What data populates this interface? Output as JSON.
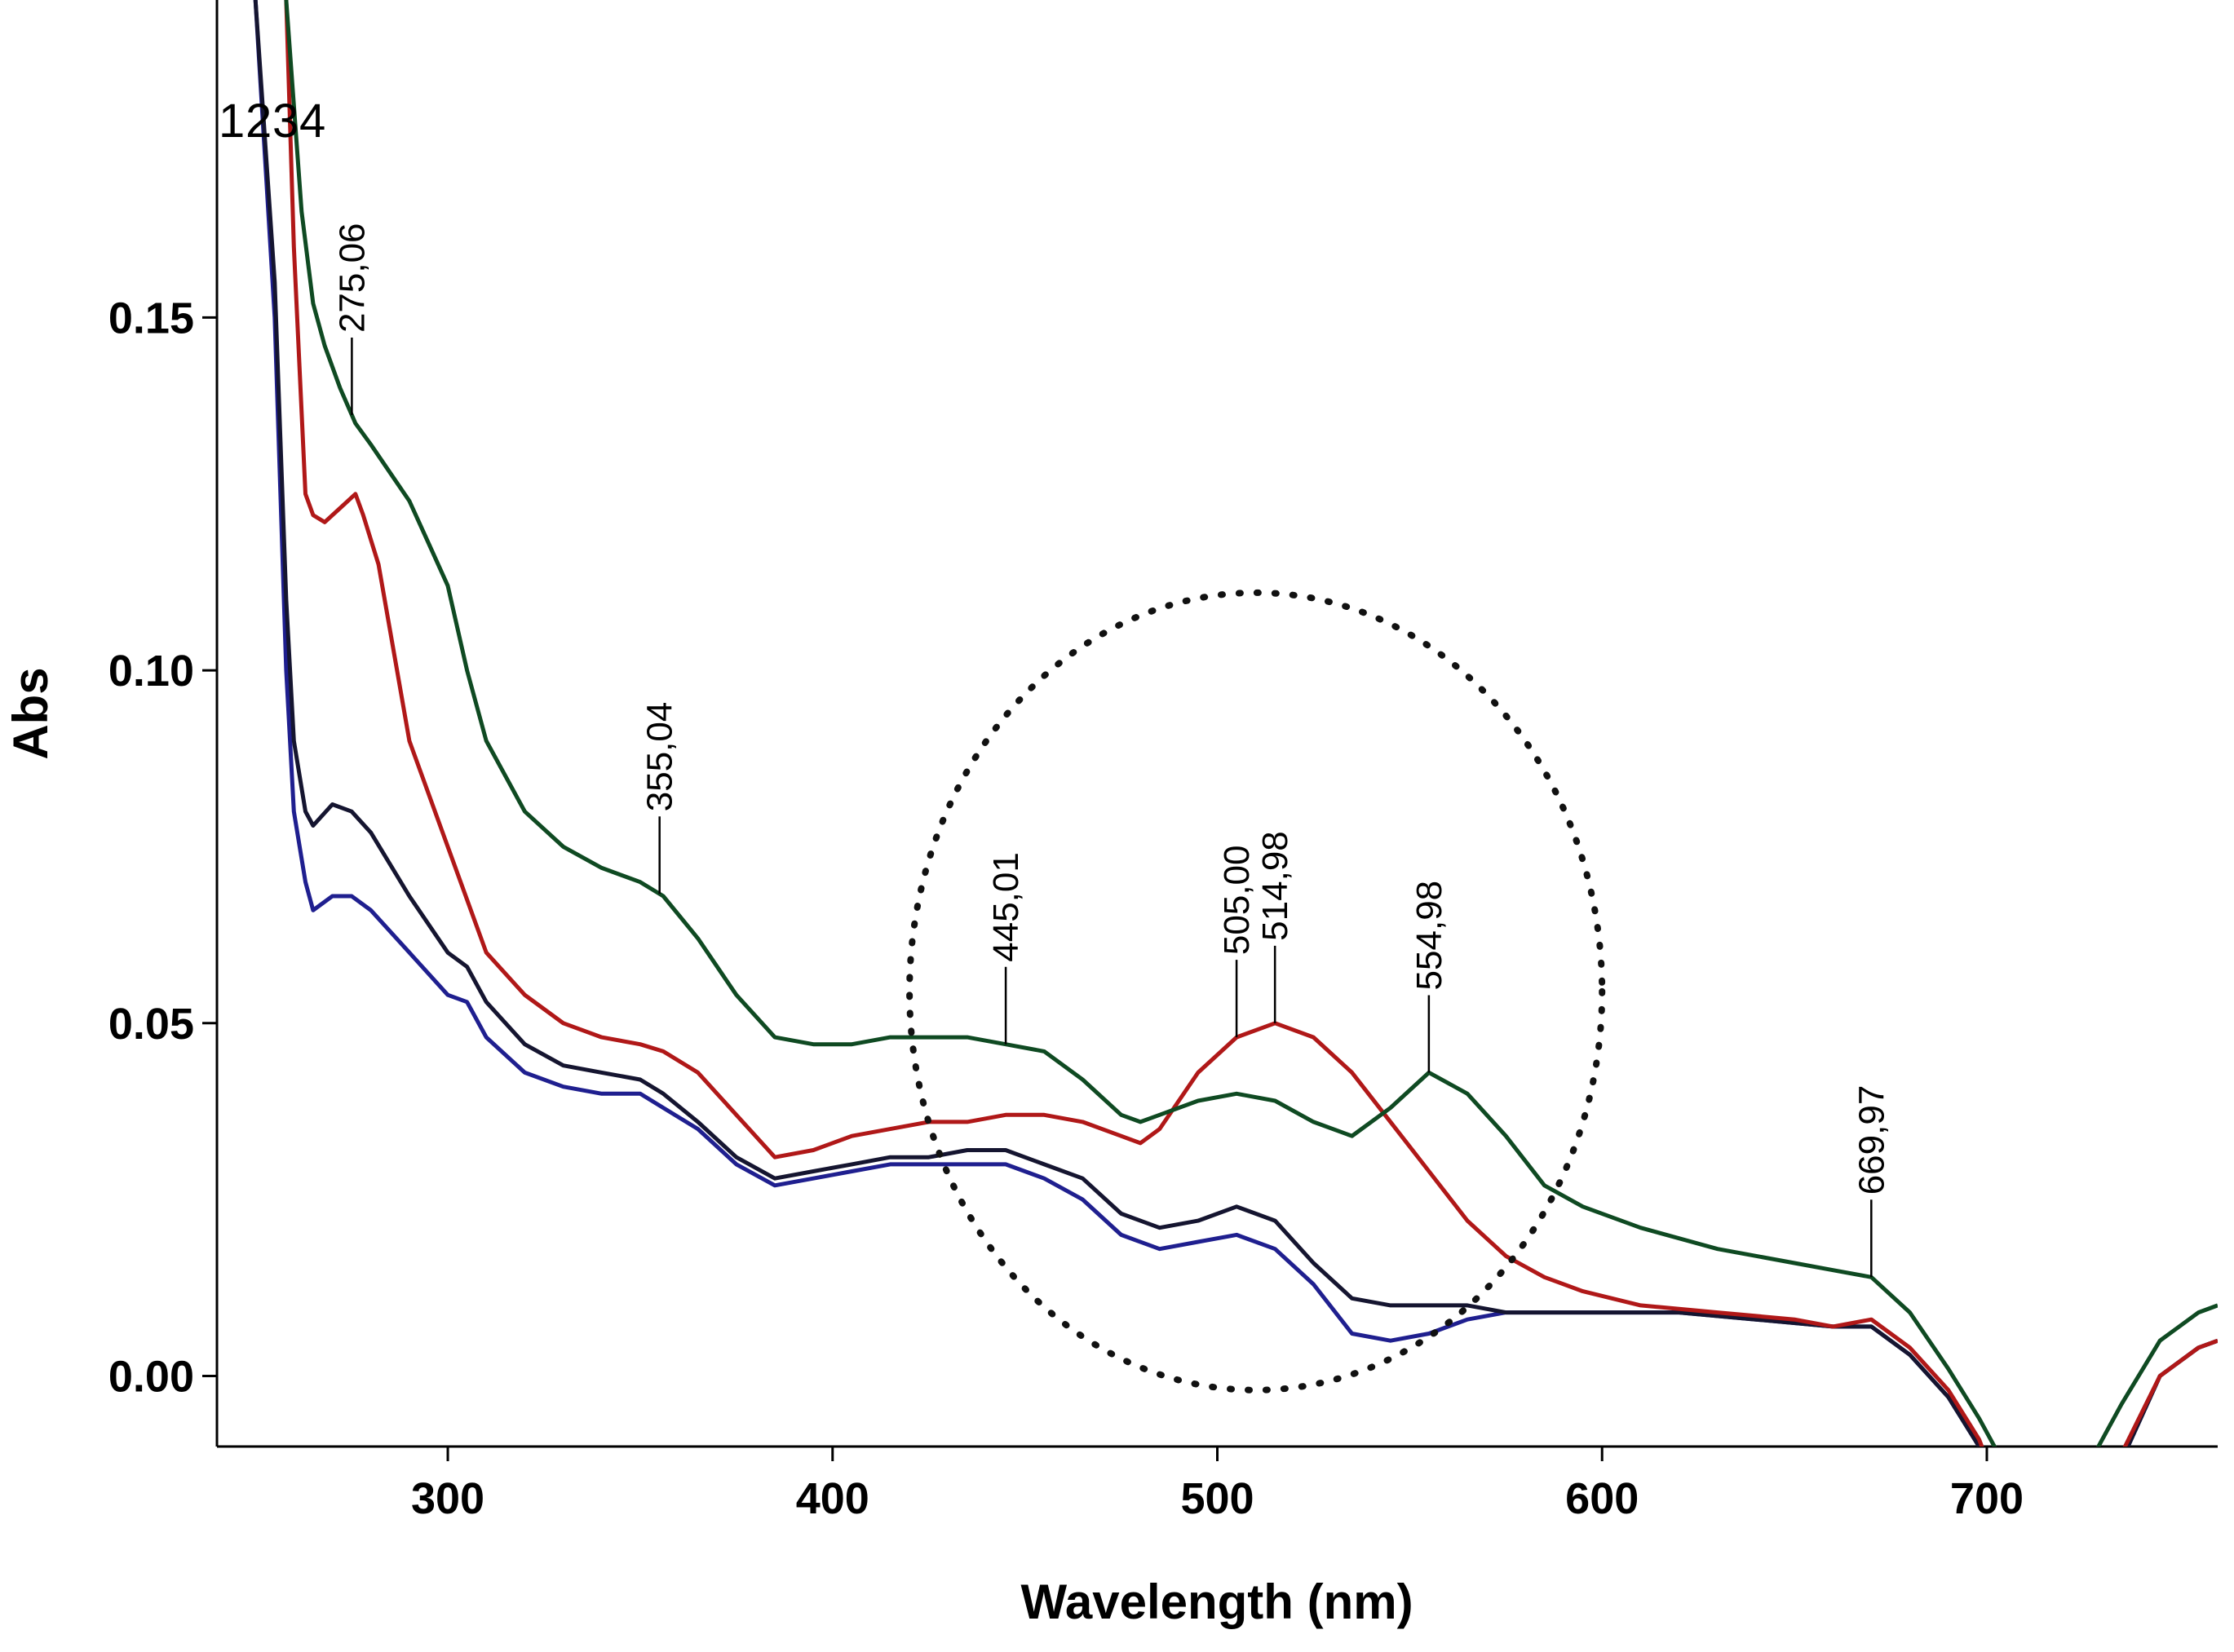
{
  "chart_data": {
    "type": "line",
    "xlabel": "Wavelength (nm)",
    "ylabel": "Abs",
    "xlim": [
      240,
      760
    ],
    "ylim": [
      -0.01,
      0.195
    ],
    "x_ticks": [
      {
        "value": 300,
        "label": "300"
      },
      {
        "value": 400,
        "label": "400"
      },
      {
        "value": 500,
        "label": "500"
      },
      {
        "value": 600,
        "label": "600"
      },
      {
        "value": 700,
        "label": "700"
      }
    ],
    "y_ticks": [
      {
        "value": 0.0,
        "label": "0.00"
      },
      {
        "value": 0.05,
        "label": "0.05"
      },
      {
        "value": 0.1,
        "label": "0.10"
      },
      {
        "value": 0.15,
        "label": "0.15"
      }
    ],
    "grid": false,
    "series_labels": [
      "1",
      "2",
      "3",
      "4"
    ],
    "series": [
      {
        "label": "1",
        "color": "#1f1f8f",
        "x": [
          250,
          255,
          258,
          260,
          263,
          265,
          270,
          275,
          280,
          290,
          300,
          305,
          310,
          320,
          330,
          340,
          350,
          356,
          365,
          375,
          385,
          395,
          405,
          415,
          425,
          435,
          445,
          455,
          465,
          475,
          485,
          495,
          505,
          515,
          525,
          535,
          545,
          555,
          565,
          575,
          585,
          600,
          620,
          640,
          660,
          670,
          680,
          690,
          698,
          705,
          712,
          718,
          725,
          735,
          745,
          755,
          760
        ],
        "y": [
          0.195,
          0.15,
          0.1,
          0.08,
          0.07,
          0.066,
          0.068,
          0.068,
          0.066,
          0.06,
          0.054,
          0.053,
          0.048,
          0.043,
          0.041,
          0.04,
          0.04,
          0.038,
          0.035,
          0.03,
          0.027,
          0.028,
          0.029,
          0.03,
          0.03,
          0.03,
          0.03,
          0.028,
          0.025,
          0.02,
          0.018,
          0.019,
          0.02,
          0.018,
          0.013,
          0.006,
          0.005,
          0.006,
          0.008,
          0.009,
          0.009,
          0.009,
          0.009,
          0.008,
          0.007,
          0.007,
          0.003,
          -0.003,
          -0.01,
          -0.02,
          -0.028,
          -0.03,
          -0.025,
          -0.012,
          0.0,
          0.004,
          0.005
        ]
      },
      {
        "label": "2",
        "color": "#151530",
        "x": [
          250,
          255,
          258,
          260,
          263,
          265,
          270,
          275,
          280,
          290,
          300,
          305,
          310,
          320,
          330,
          340,
          350,
          356,
          365,
          375,
          385,
          395,
          405,
          415,
          425,
          435,
          445,
          455,
          465,
          475,
          485,
          495,
          505,
          515,
          525,
          535,
          545,
          555,
          565,
          575,
          585,
          600,
          620,
          640,
          660,
          670,
          680,
          690,
          698,
          705,
          712,
          718,
          725,
          735,
          745,
          755,
          760
        ],
        "y": [
          0.195,
          0.155,
          0.11,
          0.09,
          0.08,
          0.078,
          0.081,
          0.08,
          0.077,
          0.068,
          0.06,
          0.058,
          0.053,
          0.047,
          0.044,
          0.043,
          0.042,
          0.04,
          0.036,
          0.031,
          0.028,
          0.029,
          0.03,
          0.031,
          0.031,
          0.032,
          0.032,
          0.03,
          0.028,
          0.023,
          0.021,
          0.022,
          0.024,
          0.022,
          0.016,
          0.011,
          0.01,
          0.01,
          0.01,
          0.009,
          0.009,
          0.009,
          0.009,
          0.008,
          0.007,
          0.007,
          0.003,
          -0.003,
          -0.01,
          -0.02,
          -0.028,
          -0.03,
          -0.025,
          -0.012,
          0.0,
          0.004,
          0.005
        ]
      },
      {
        "label": "3",
        "color": "#b01818",
        "x": [
          258,
          260,
          263,
          265,
          268,
          272,
          276,
          278,
          282,
          290,
          300,
          310,
          320,
          330,
          340,
          350,
          356,
          365,
          375,
          385,
          395,
          405,
          415,
          425,
          435,
          445,
          455,
          465,
          475,
          480,
          485,
          495,
          505,
          515,
          525,
          535,
          545,
          555,
          565,
          575,
          585,
          595,
          610,
          630,
          650,
          660,
          670,
          680,
          690,
          698,
          705,
          712,
          718,
          725,
          735,
          745,
          755,
          760
        ],
        "y": [
          0.195,
          0.16,
          0.125,
          0.122,
          0.121,
          0.123,
          0.125,
          0.122,
          0.115,
          0.09,
          0.075,
          0.06,
          0.054,
          0.05,
          0.048,
          0.047,
          0.046,
          0.043,
          0.037,
          0.031,
          0.032,
          0.034,
          0.035,
          0.036,
          0.036,
          0.037,
          0.037,
          0.036,
          0.034,
          0.033,
          0.035,
          0.043,
          0.048,
          0.05,
          0.048,
          0.043,
          0.036,
          0.029,
          0.022,
          0.017,
          0.014,
          0.012,
          0.01,
          0.009,
          0.008,
          0.007,
          0.008,
          0.004,
          -0.002,
          -0.009,
          -0.019,
          -0.027,
          -0.029,
          -0.024,
          -0.011,
          0.0,
          0.004,
          0.005
        ]
      },
      {
        "label": "4",
        "color": "#0f4a22",
        "x": [
          258,
          262,
          265,
          268,
          272,
          276,
          280,
          285,
          290,
          295,
          300,
          305,
          310,
          320,
          330,
          340,
          350,
          356,
          365,
          375,
          385,
          395,
          405,
          415,
          425,
          435,
          445,
          455,
          465,
          475,
          480,
          485,
          495,
          505,
          515,
          525,
          535,
          545,
          555,
          565,
          575,
          585,
          595,
          610,
          630,
          650,
          660,
          670,
          680,
          690,
          698,
          705,
          712,
          718,
          725,
          735,
          745,
          755,
          760
        ],
        "y": [
          0.195,
          0.165,
          0.152,
          0.146,
          0.14,
          0.135,
          0.132,
          0.128,
          0.124,
          0.118,
          0.112,
          0.1,
          0.09,
          0.08,
          0.075,
          0.072,
          0.07,
          0.068,
          0.062,
          0.054,
          0.048,
          0.047,
          0.047,
          0.048,
          0.048,
          0.048,
          0.047,
          0.046,
          0.042,
          0.037,
          0.036,
          0.037,
          0.039,
          0.04,
          0.039,
          0.036,
          0.034,
          0.038,
          0.043,
          0.04,
          0.034,
          0.027,
          0.024,
          0.021,
          0.018,
          0.016,
          0.015,
          0.014,
          0.009,
          0.001,
          -0.006,
          -0.013,
          -0.018,
          -0.019,
          -0.014,
          -0.004,
          0.005,
          0.009,
          0.01
        ]
      }
    ],
    "peak_annotations": [
      {
        "x": 275.06,
        "label": "275,06"
      },
      {
        "x": 355.04,
        "label": "355,04"
      },
      {
        "x": 445.01,
        "label": "445,01"
      },
      {
        "x": 505.0,
        "label": "505,00"
      },
      {
        "x": 514.98,
        "label": "514,98"
      },
      {
        "x": 554.98,
        "label": "554,98"
      },
      {
        "x": 669.97,
        "label": "669,97"
      }
    ],
    "highlight_region": {
      "shape": "ellipse",
      "style": "dotted",
      "x_range": [
        420,
        600
      ],
      "y_range": [
        -0.002,
        0.111
      ]
    }
  }
}
